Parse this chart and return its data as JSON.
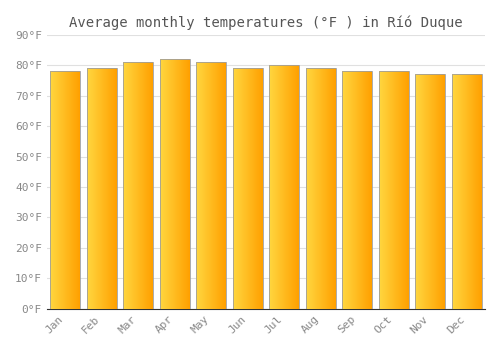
{
  "title": "Average monthly temperatures (°F ) in Ríó Duque",
  "months": [
    "Jan",
    "Feb",
    "Mar",
    "Apr",
    "May",
    "Jun",
    "Jul",
    "Aug",
    "Sep",
    "Oct",
    "Nov",
    "Dec"
  ],
  "values": [
    78,
    79,
    81,
    82,
    81,
    79,
    80,
    79,
    78,
    78,
    77,
    77
  ],
  "bar_color_left": "#FFD740",
  "bar_color_right": "#FFA000",
  "bar_edge_color": "#9E9E9E",
  "background_color": "#FFFFFF",
  "grid_color": "#E0E0E0",
  "text_color": "#888888",
  "title_color": "#555555",
  "ylim": [
    0,
    90
  ],
  "yticks": [
    0,
    10,
    20,
    30,
    40,
    50,
    60,
    70,
    80,
    90
  ],
  "ytick_labels": [
    "0°F",
    "10°F",
    "20°F",
    "30°F",
    "40°F",
    "50°F",
    "60°F",
    "70°F",
    "80°F",
    "90°F"
  ],
  "title_fontsize": 10,
  "tick_fontsize": 8,
  "font_family": "monospace",
  "bar_width": 0.82,
  "gradient_steps": 100
}
